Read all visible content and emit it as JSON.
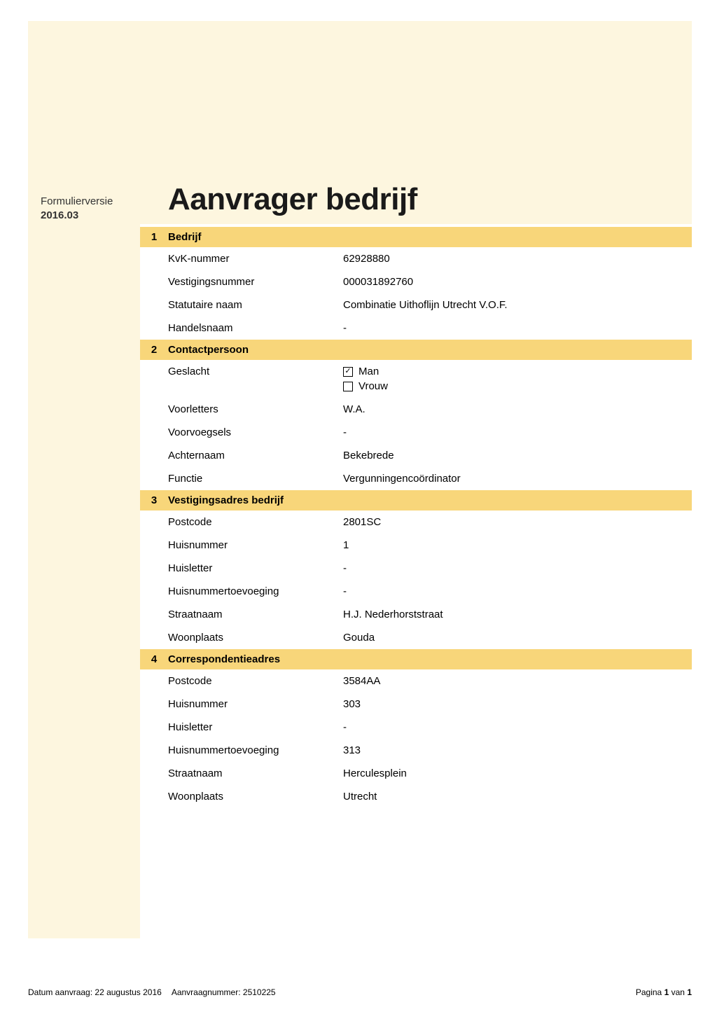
{
  "colors": {
    "page_bg": "#ffffff",
    "sidebar_bg": "#fdf6df",
    "section_header_bg": "#f8d67a",
    "text": "#000000"
  },
  "formVersion": {
    "label": "Formulierversie",
    "value": "2016.03"
  },
  "title": "Aanvrager bedrijf",
  "sections": [
    {
      "num": "1",
      "title": "Bedrijf",
      "rows": [
        {
          "label": "KvK-nummer",
          "value": "62928880"
        },
        {
          "label": "Vestigingsnummer",
          "value": "000031892760"
        },
        {
          "label": "Statutaire naam",
          "value": "Combinatie Uithoflijn Utrecht V.O.F."
        },
        {
          "label": "Handelsnaam",
          "value": "-"
        }
      ]
    },
    {
      "num": "2",
      "title": "Contactpersoon",
      "rows": [
        {
          "label": "Geslacht",
          "checkboxes": [
            {
              "label": "Man",
              "checked": true
            },
            {
              "label": "Vrouw",
              "checked": false
            }
          ]
        },
        {
          "label": "Voorletters",
          "value": "W.A."
        },
        {
          "label": "Voorvoegsels",
          "value": "-"
        },
        {
          "label": "Achternaam",
          "value": "Bekebrede"
        },
        {
          "label": "Functie",
          "value": "Vergunningencoördinator"
        }
      ]
    },
    {
      "num": "3",
      "title": "Vestigingsadres bedrijf",
      "rows": [
        {
          "label": "Postcode",
          "value": "2801SC"
        },
        {
          "label": "Huisnummer",
          "value": "1"
        },
        {
          "label": "Huisletter",
          "value": "-"
        },
        {
          "label": "Huisnummertoevoeging",
          "value": "-"
        },
        {
          "label": "Straatnaam",
          "value": "H.J. Nederhorststraat"
        },
        {
          "label": "Woonplaats",
          "value": "Gouda"
        }
      ]
    },
    {
      "num": "4",
      "title": "Correspondentieadres",
      "rows": [
        {
          "label": "Postcode",
          "value": "3584AA"
        },
        {
          "label": "Huisnummer",
          "value": "303"
        },
        {
          "label": "Huisletter",
          "value": "-"
        },
        {
          "label": "Huisnummertoevoeging",
          "value": "313"
        },
        {
          "label": "Straatnaam",
          "value": "Herculesplein"
        },
        {
          "label": "Woonplaats",
          "value": "Utrecht"
        }
      ]
    }
  ],
  "footer": {
    "datum_label": "Datum aanvraag:",
    "datum_value": "22 augustus 2016",
    "nummer_label": "Aanvraagnummer:",
    "nummer_value": "2510225",
    "page_label_prefix": "Pagina",
    "page_current": "1",
    "page_sep": "van",
    "page_total": "1"
  }
}
